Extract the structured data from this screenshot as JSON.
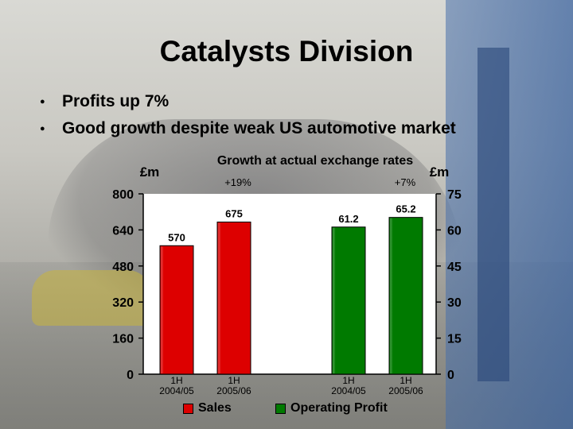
{
  "slide": {
    "title": "Catalysts Division",
    "bullets": [
      "Profits up 7%",
      "Good growth despite weak US automotive market"
    ]
  },
  "chart_data": {
    "type": "bar",
    "title": "Growth at actual exchange rates",
    "categories": [
      "1H\n2004/05",
      "1H\n2005/06",
      "1H\n2004/05",
      "1H\n2005/06"
    ],
    "series": [
      {
        "name": "Sales",
        "axis": "left",
        "color": "#dd0000",
        "values": [
          570,
          675,
          null,
          null
        ],
        "labels": [
          "570",
          "675",
          null,
          null
        ]
      },
      {
        "name": "Operating Profit",
        "axis": "right",
        "color": "#007a00",
        "values": [
          null,
          null,
          61.2,
          65.2
        ],
        "labels": [
          null,
          null,
          "61.2",
          "65.2"
        ]
      }
    ],
    "left_axis": {
      "unit": "£m",
      "ylim": [
        0,
        800
      ],
      "ticks": [
        0,
        160,
        320,
        480,
        640,
        800
      ]
    },
    "right_axis": {
      "unit": "£m",
      "ylim": [
        0,
        75
      ],
      "ticks": [
        0,
        15,
        30,
        45,
        60,
        75
      ]
    },
    "annotations": [
      "+19%",
      "+7%"
    ],
    "legend": {
      "placement": "bottom",
      "entries": [
        "Sales",
        "Operating Profit"
      ]
    },
    "grid": false,
    "plot_background": "#ffffff"
  }
}
